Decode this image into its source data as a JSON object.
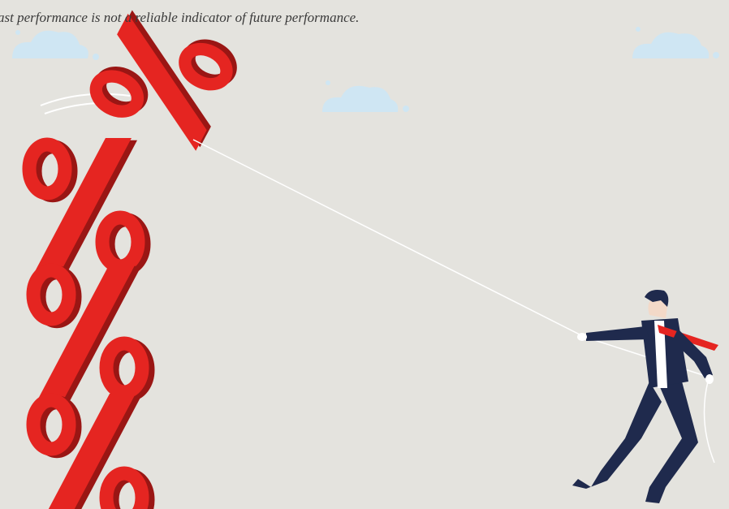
{
  "caption": "ast performance is not a reliable indicator of future performance."
}
